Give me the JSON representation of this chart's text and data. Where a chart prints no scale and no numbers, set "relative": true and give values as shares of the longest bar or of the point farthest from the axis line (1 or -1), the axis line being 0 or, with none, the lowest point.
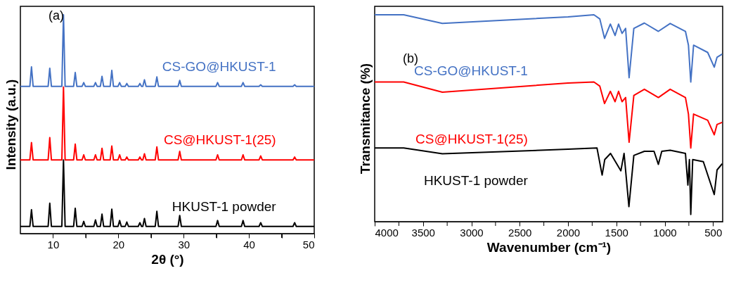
{
  "chart_data": [
    {
      "type": "line",
      "relative": true,
      "xlabel": "2θ (°)",
      "ylabel": "Intensity (a.u.)",
      "annotations": [
        "(a)"
      ],
      "tick_labels": "x",
      "grid": false,
      "legend": false,
      "marker": "none",
      "line_style": "solid",
      "xlim": [
        5,
        50
      ],
      "xticks": [
        10,
        {
          "value": 15,
          "label": null
        },
        20,
        {
          "value": 25,
          "label": null
        },
        30,
        {
          "value": 35,
          "label": null
        },
        40,
        {
          "value": 45,
          "label": null
        },
        50
      ],
      "x": [
        5,
        6.45,
        6.7,
        6.95,
        9.25,
        9.5,
        9.75,
        11.35,
        11.6,
        11.85,
        13.15,
        13.4,
        13.65,
        14.45,
        14.7,
        14.95,
        16.25,
        16.5,
        16.75,
        17.25,
        17.5,
        17.75,
        18.75,
        19.0,
        19.25,
        19.95,
        20.2,
        20.45,
        21.05,
        21.3,
        21.55,
        23.05,
        23.3,
        23.55,
        23.75,
        24.0,
        24.25,
        25.65,
        25.9,
        26.15,
        29.15,
        29.4,
        29.65,
        34.95,
        35.2,
        35.45,
        38.85,
        39.1,
        39.35,
        41.55,
        41.8,
        42.05,
        46.75,
        47.0,
        47.25,
        50
      ],
      "series": [
        {
          "name": "CS-GO@HKUST-1",
          "color": "#4472c4",
          "values": [
            0.673,
            0.673,
            0.762,
            0.673,
            0.673,
            0.756,
            0.673,
            0.673,
            1.0,
            0.673,
            0.673,
            0.736,
            0.673,
            0.673,
            0.69,
            0.673,
            0.673,
            0.69,
            0.673,
            0.673,
            0.719,
            0.673,
            0.673,
            0.746,
            0.673,
            0.673,
            0.69,
            0.673,
            0.673,
            0.686,
            0.673,
            0.673,
            0.686,
            0.673,
            0.673,
            0.703,
            0.673,
            0.673,
            0.716,
            0.673,
            0.673,
            0.7,
            0.673,
            0.673,
            0.69,
            0.673,
            0.673,
            0.69,
            0.673,
            0.673,
            0.68,
            0.673,
            0.673,
            0.68,
            0.673,
            0.673
          ]
        },
        {
          "name": "CS@HKUST-1(25)",
          "color": "#ff0000",
          "values": [
            0.337,
            0.337,
            0.416,
            0.337,
            0.337,
            0.439,
            0.337,
            0.337,
            0.67,
            0.337,
            0.337,
            0.409,
            0.337,
            0.337,
            0.36,
            0.337,
            0.337,
            0.36,
            0.337,
            0.337,
            0.39,
            0.337,
            0.337,
            0.4,
            0.337,
            0.337,
            0.36,
            0.337,
            0.337,
            0.35,
            0.337,
            0.337,
            0.35,
            0.337,
            0.337,
            0.365,
            0.337,
            0.337,
            0.396,
            0.337,
            0.337,
            0.376,
            0.337,
            0.337,
            0.36,
            0.337,
            0.337,
            0.36,
            0.337,
            0.337,
            0.355,
            0.337,
            0.337,
            0.35,
            0.337,
            0.337
          ]
        },
        {
          "name": "HKUST-1 powder",
          "color": "#000000",
          "values": [
            0.033,
            0.033,
            0.109,
            0.033,
            0.033,
            0.139,
            0.033,
            0.033,
            0.337,
            0.033,
            0.033,
            0.116,
            0.033,
            0.033,
            0.056,
            0.033,
            0.033,
            0.063,
            0.033,
            0.033,
            0.089,
            0.033,
            0.033,
            0.112,
            0.033,
            0.033,
            0.06,
            0.033,
            0.033,
            0.053,
            0.033,
            0.033,
            0.05,
            0.033,
            0.033,
            0.069,
            0.033,
            0.033,
            0.102,
            0.033,
            0.033,
            0.083,
            0.033,
            0.033,
            0.06,
            0.033,
            0.033,
            0.06,
            0.033,
            0.033,
            0.05,
            0.033,
            0.033,
            0.05,
            0.033,
            0.033
          ]
        }
      ]
    },
    {
      "type": "line",
      "relative": true,
      "xlabel": "Wavenumber (cm⁻¹)",
      "ylabel": "Transmitance (%)",
      "annotations": [
        "(b)"
      ],
      "tick_labels": "x",
      "grid": false,
      "legend": false,
      "marker": "none",
      "line_style": "solid",
      "xlim": [
        4000,
        400
      ],
      "xticks": [
        4000,
        {
          "value": 3750,
          "label": null
        },
        3500,
        {
          "value": 3250,
          "label": null
        },
        3000,
        {
          "value": 2750,
          "label": null
        },
        2500,
        {
          "value": 2250,
          "label": null
        },
        2000,
        {
          "value": 1750,
          "label": null
        },
        1500,
        {
          "value": 1250,
          "label": null
        },
        1000,
        {
          "value": 750,
          "label": null
        },
        500
      ],
      "series": [
        {
          "name": "CS-GO@HKUST-1",
          "color": "#4472c4",
          "x": [
            4000,
            3700,
            3300,
            2000,
            1732,
            1671,
            1622,
            1562,
            1513,
            1477,
            1441,
            1404,
            1368,
            1319,
            1210,
            1065,
            943,
            785,
            754,
            730,
            701,
            555,
            487,
            458,
            405
          ],
          "values": [
            1.0,
            1.0,
            0.958,
            0.99,
            1.0,
            0.98,
            0.886,
            0.955,
            0.9,
            0.955,
            0.91,
            0.934,
            0.696,
            0.934,
            0.96,
            0.92,
            0.958,
            0.92,
            0.853,
            0.675,
            0.853,
            0.818,
            0.747,
            0.795,
            0.81
          ]
        },
        {
          "name": "CS@HKUST-1(25)",
          "color": "#ff0000",
          "x": [
            4000,
            3700,
            3300,
            2000,
            1732,
            1671,
            1622,
            1562,
            1513,
            1477,
            1441,
            1404,
            1368,
            1319,
            1210,
            1065,
            943,
            785,
            754,
            730,
            701,
            555,
            487,
            458,
            405
          ],
          "values": [
            0.675,
            0.675,
            0.626,
            0.67,
            0.675,
            0.655,
            0.571,
            0.63,
            0.58,
            0.63,
            0.58,
            0.6,
            0.384,
            0.61,
            0.64,
            0.6,
            0.64,
            0.6,
            0.52,
            0.356,
            0.52,
            0.49,
            0.42,
            0.47,
            0.48
          ]
        },
        {
          "name": "HKUST-1 powder",
          "color": "#000000",
          "x": [
            4000,
            3700,
            3300,
            2000,
            1700,
            1647,
            1620,
            1560,
            1453,
            1420,
            1370,
            1319,
            1210,
            1110,
            1065,
            1030,
            943,
            785,
            760,
            744,
            730,
            710,
            600,
            487,
            458,
            405
          ],
          "values": [
            0.356,
            0.356,
            0.328,
            0.35,
            0.356,
            0.225,
            0.3,
            0.33,
            0.246,
            0.33,
            0.073,
            0.32,
            0.34,
            0.34,
            0.277,
            0.34,
            0.345,
            0.33,
            0.177,
            0.3,
            0.035,
            0.3,
            0.29,
            0.131,
            0.25,
            0.28
          ]
        }
      ]
    }
  ]
}
